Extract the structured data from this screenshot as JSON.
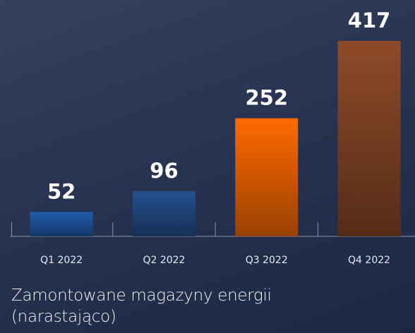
{
  "chart_data": {
    "type": "bar",
    "title": "Zamontowane magazyny energii (narastająco)",
    "categories": [
      "Q1 2022",
      "Q2 2022",
      "Q3 2022",
      "Q4 2022"
    ],
    "values": [
      52,
      96,
      252,
      417
    ],
    "colors": [
      "#1f5cab",
      "#25508f",
      "#ff6a00",
      "#8e4a28"
    ]
  }
}
